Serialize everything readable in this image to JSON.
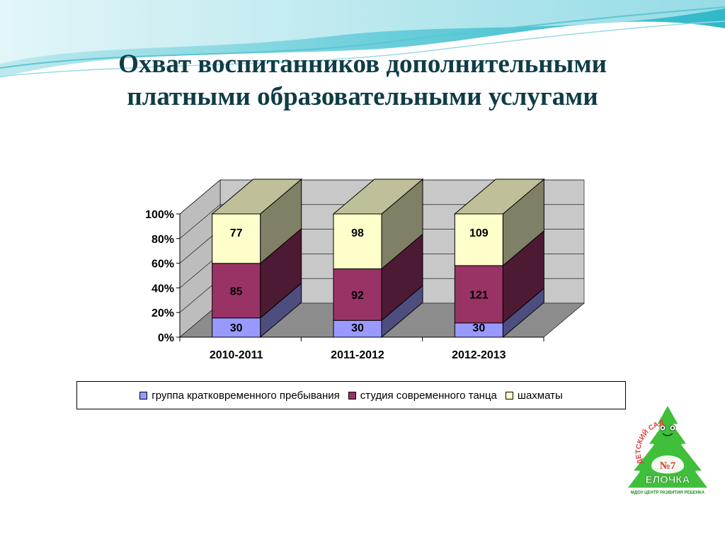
{
  "slide": {
    "title_lines": [
      "Охват воспитанников дополнительными",
      "платными образовательными услугами"
    ]
  },
  "colors": {
    "title": "#0f3d47",
    "series": [
      "#9999ff",
      "#993366",
      "#ffffcc"
    ],
    "logo_green": "#3fbf3a"
  },
  "chart_data": {
    "type": "bar",
    "stacked": "percent",
    "three_d": true,
    "categories": [
      "2010-2011",
      "2011-2012",
      "2012-2013"
    ],
    "series": [
      {
        "name": "группа кратковременного пребывания",
        "values": [
          30,
          30,
          30
        ]
      },
      {
        "name": "студия современного танца",
        "values": [
          85,
          92,
          121
        ]
      },
      {
        "name": "шахматы",
        "values": [
          77,
          98,
          109
        ]
      }
    ],
    "yticks": [
      "0%",
      "20%",
      "40%",
      "60%",
      "80%",
      "100%"
    ],
    "ylim": [
      0,
      100
    ],
    "grid": true,
    "legend_position": "bottom"
  },
  "logo": {
    "arc_text": "ДЕТСКИЙ САД",
    "number": "№7",
    "name": "ЁЛОЧКА",
    "bottom_text": "МДОУ ЦЕНТР РАЗВИТИЯ РЕБЕНКА",
    "icon": "christmas-tree-logo-icon"
  }
}
